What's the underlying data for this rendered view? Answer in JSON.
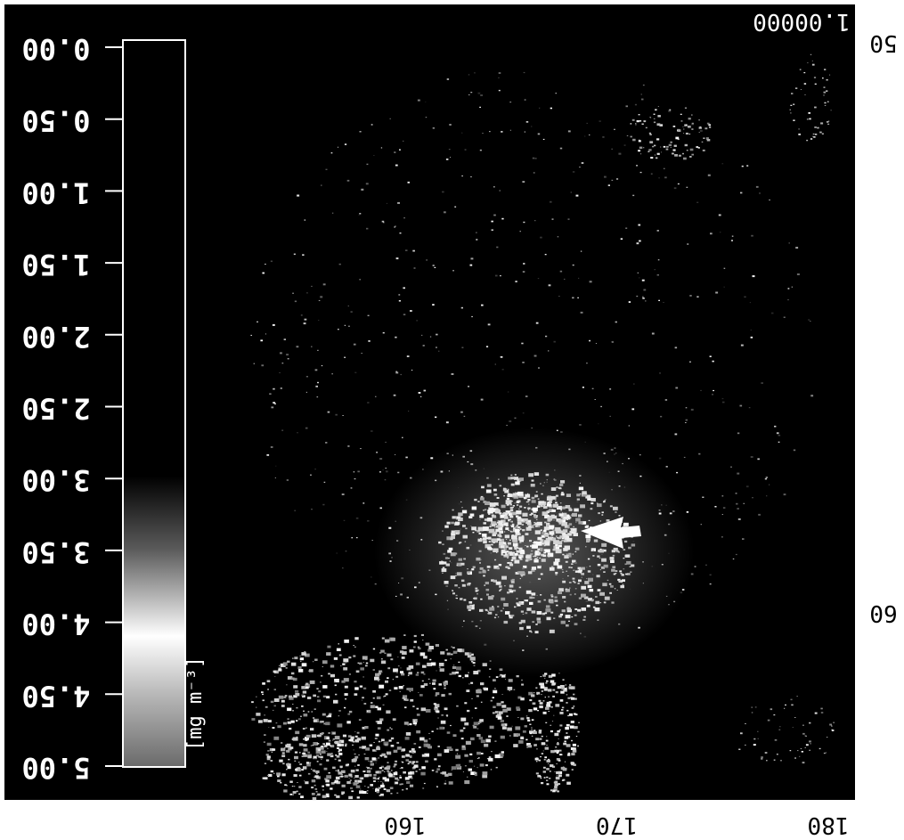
{
  "chart_data": {
    "type": "heatmap",
    "title": "",
    "orientation": "image shown rotated 180 degrees (all text upside down)",
    "colorbar": {
      "label": "[mg m⁻³]",
      "ticks": [
        "0.00",
        "0.50",
        "1.00",
        "1.50",
        "2.00",
        "2.50",
        "3.00",
        "3.50",
        "4.00",
        "4.50",
        "5.00"
      ],
      "range": [
        0,
        5
      ],
      "colormap": "grayscale (black to white)"
    },
    "x_axis": {
      "ticks": [
        "160",
        "170",
        "180"
      ],
      "label": ""
    },
    "y_axis": {
      "ticks": [
        "50",
        "60"
      ],
      "label": ""
    },
    "top_right_label": "1.00000",
    "annotations": [
      {
        "type": "arrow",
        "color": "white",
        "points_to": "bright chlorophyll feature near 170 / 60"
      }
    ],
    "background": "black"
  }
}
